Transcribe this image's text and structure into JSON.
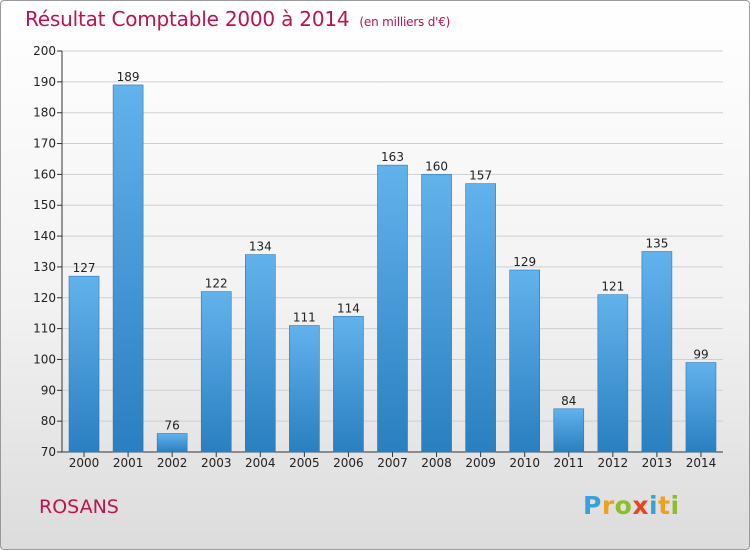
{
  "title": "Résultat Comptable 2000 à 2014",
  "subtitle": "(en milliers d'€)",
  "commune": "ROSANS",
  "logo": {
    "letters": [
      "P",
      "r",
      "o",
      "x",
      "i",
      "t",
      "i"
    ],
    "colors": [
      "#3aa0dc",
      "#f0a01e",
      "#8cbd2a",
      "#e8451e",
      "#3aa0dc",
      "#f0a01e",
      "#8cbd2a"
    ]
  },
  "colors": {
    "title": "#c0124f",
    "bar_top": "#62b2ec",
    "bar_bottom": "#2a7fc0",
    "grid": "#cfcfcf"
  },
  "chart_data": {
    "type": "bar",
    "categories": [
      "2000",
      "2001",
      "2002",
      "2003",
      "2004",
      "2005",
      "2006",
      "2007",
      "2008",
      "2009",
      "2010",
      "2011",
      "2012",
      "2013",
      "2014"
    ],
    "values": [
      127,
      189,
      76,
      122,
      134,
      111,
      114,
      163,
      160,
      157,
      129,
      84,
      121,
      135,
      99
    ],
    "data_labels": [
      "127",
      "189",
      "76",
      "122",
      "134",
      "111",
      "114",
      "163",
      "160",
      "157",
      "129",
      "84",
      "121",
      "135",
      "99"
    ],
    "ylim": [
      70,
      200
    ],
    "yticks": [
      "70",
      "80",
      "90",
      "100",
      "110",
      "120",
      "130",
      "140",
      "150",
      "160",
      "170",
      "180",
      "190",
      "200"
    ],
    "grid": true,
    "legend": "none"
  }
}
